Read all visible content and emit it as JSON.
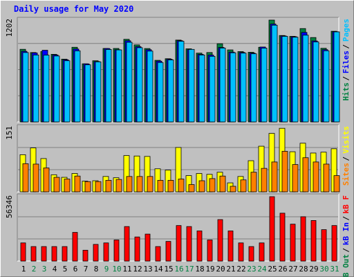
{
  "title": "Daily usage for May 2020",
  "chart_data": [
    {
      "type": "bar",
      "name_key": "usage-top",
      "ymax_label": "1202",
      "ylim": [
        0,
        1202
      ],
      "grid": true,
      "legend": [
        {
          "label": "Pages",
          "color": "#00c0ff"
        },
        {
          "label": "Files",
          "color": "#0000ff"
        },
        {
          "label": "Hits",
          "color": "#008040"
        }
      ],
      "categories": [
        "1",
        "2",
        "3",
        "4",
        "5",
        "6",
        "7",
        "8",
        "9",
        "10",
        "11",
        "12",
        "13",
        "14",
        "15",
        "16",
        "17",
        "18",
        "19",
        "20",
        "21",
        "22",
        "23",
        "24",
        "25",
        "26",
        "27",
        "28",
        "29",
        "30",
        "31"
      ],
      "series": [
        {
          "name": "Hits",
          "color": "#008040",
          "values": [
            857,
            819,
            830,
            798,
            741,
            881,
            686,
            722,
            867,
            867,
            975,
            909,
            866,
            727,
            746,
            966,
            863,
            812,
            819,
            923,
            850,
            830,
            822,
            881,
            1202,
            1020,
            1010,
            1102,
            996,
            869,
            1070
          ]
        },
        {
          "name": "Files",
          "color": "#0000ff",
          "values": [
            833,
            814,
            846,
            790,
            733,
            860,
            685,
            713,
            866,
            852,
            958,
            888,
            852,
            717,
            740,
            959,
            853,
            798,
            789,
            879,
            824,
            820,
            812,
            884,
            1155,
            1015,
            1006,
            1056,
            956,
            853,
            1065
          ]
        },
        {
          "name": "Pages",
          "color": "#00c0ff",
          "values": [
            819,
            790,
            788,
            778,
            722,
            839,
            674,
            709,
            855,
            850,
            940,
            876,
            836,
            701,
            732,
            952,
            856,
            790,
            774,
            872,
            816,
            812,
            804,
            871,
            1142,
            1010,
            1000,
            1024,
            944,
            840,
            1063
          ]
        }
      ]
    },
    {
      "type": "bar",
      "name_key": "visits-mid",
      "ymax_label": "151",
      "ylim": [
        0,
        151
      ],
      "grid": true,
      "legend": [
        {
          "label": "Visits",
          "color": "#ffff00"
        },
        {
          "label": "Sites",
          "color": "#ff8000"
        }
      ],
      "categories": [
        "1",
        "2",
        "3",
        "4",
        "5",
        "6",
        "7",
        "8",
        "9",
        "10",
        "11",
        "12",
        "13",
        "14",
        "15",
        "16",
        "17",
        "18",
        "19",
        "20",
        "21",
        "22",
        "23",
        "24",
        "25",
        "26",
        "27",
        "28",
        "29",
        "30",
        "31"
      ],
      "series": [
        {
          "name": "Visits",
          "color": "#ffff00",
          "values": [
            87,
            103,
            78,
            40,
            34,
            43,
            25,
            26,
            36,
            33,
            85,
            84,
            83,
            54,
            51,
            104,
            38,
            43,
            41,
            46,
            21,
            36,
            73,
            107,
            137,
            149,
            94,
            114,
            91,
            93,
            101
          ]
        },
        {
          "name": "Sites",
          "color": "#ff8000",
          "values": [
            66,
            65,
            56,
            34,
            30,
            37,
            24,
            24,
            27,
            29,
            36,
            36,
            36,
            27,
            27,
            30,
            17,
            26,
            31,
            37,
            13,
            28,
            46,
            55,
            70,
            95,
            64,
            80,
            70,
            65,
            38
          ]
        }
      ]
    },
    {
      "type": "bar",
      "name_key": "kb-bottom",
      "ymax_label": "56346",
      "ylim": [
        0,
        56346
      ],
      "grid": true,
      "legend": [
        {
          "label": "kB F",
          "color": "#ff0000"
        },
        {
          "label": "kB In",
          "color": "#0000ff"
        },
        {
          "label": "kB Out",
          "color": "#008040"
        }
      ],
      "categories": [
        "1",
        "2",
        "3",
        "4",
        "5",
        "6",
        "7",
        "8",
        "9",
        "10",
        "11",
        "12",
        "13",
        "14",
        "15",
        "16",
        "17",
        "18",
        "19",
        "20",
        "21",
        "22",
        "23",
        "24",
        "25",
        "26",
        "27",
        "28",
        "29",
        "30",
        "31"
      ],
      "series": [
        {
          "name": "kB F",
          "color": "#ff0000",
          "values": [
            15900,
            12700,
            12700,
            12700,
            12700,
            25100,
            9500,
            14600,
            15900,
            18500,
            30200,
            21100,
            23600,
            12700,
            17200,
            31100,
            30200,
            26400,
            18500,
            36300,
            26400,
            15900,
            12700,
            15900,
            56346,
            41900,
            32300,
            38800,
            35500,
            27500,
            31100
          ]
        }
      ]
    }
  ],
  "xaxis": {
    "labels": [
      "1",
      "2",
      "3",
      "4",
      "5",
      "6",
      "7",
      "8",
      "9",
      "10",
      "11",
      "12",
      "13",
      "14",
      "15",
      "16",
      "17",
      "18",
      "19",
      "20",
      "21",
      "22",
      "23",
      "24",
      "25",
      "26",
      "27",
      "28",
      "29",
      "30",
      "31"
    ],
    "weekend_days": [
      2,
      3,
      9,
      10,
      16,
      17,
      23,
      24,
      30,
      31
    ],
    "weekday_color": "#000000",
    "weekend_color": "#008040"
  }
}
